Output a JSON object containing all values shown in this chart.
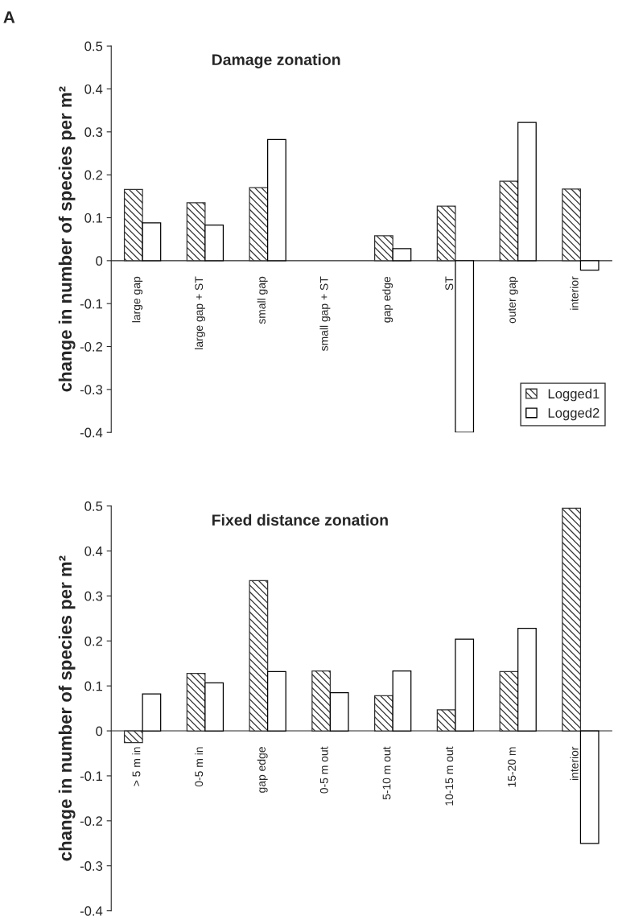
{
  "chart_data": [
    {
      "type": "bar",
      "title": "Damage zonation",
      "ylabel": "change in number of species per m²",
      "annotations": [
        "A"
      ],
      "categories": [
        "large gap",
        "large gap + ST",
        "small gap",
        "small gap + ST",
        "gap edge",
        "ST",
        "outer gap",
        "interior"
      ],
      "series": [
        {
          "name": "Logged1",
          "color": "#333333",
          "values": [
            0.166,
            0.135,
            0.17,
            null,
            0.058,
            0.127,
            0.185,
            0.167
          ]
        },
        {
          "name": "Logged2",
          "color": "#ffffff",
          "values": [
            0.088,
            0.083,
            0.282,
            null,
            0.028,
            -0.4,
            0.322,
            -0.022
          ]
        }
      ],
      "ylim": [
        -0.4,
        0.5
      ],
      "yticks": [
        -0.4,
        -0.3,
        -0.2,
        -0.1,
        0,
        0.1,
        0.2,
        0.3,
        0.4,
        0.5
      ],
      "legend": "bottom right",
      "grid": false
    },
    {
      "type": "bar",
      "title": "Fixed distance zonation",
      "ylabel": "change in number of species per m²",
      "categories": [
        "> 5 m in",
        "0-5 m in",
        "gap edge",
        "0-5 m out",
        "5-10 m out",
        "10-15 m out",
        "15-20 m",
        "interior"
      ],
      "series": [
        {
          "color": "#333333",
          "values": [
            -0.026,
            0.128,
            0.334,
            0.133,
            0.078,
            0.047,
            0.132,
            0.495
          ]
        },
        {
          "color": "#ffffff",
          "values": [
            0.082,
            0.107,
            0.132,
            0.085,
            0.133,
            0.204,
            0.228,
            -0.25
          ]
        }
      ],
      "ylim": [
        -0.4,
        0.5
      ],
      "yticks": [
        -0.4,
        -0.3,
        -0.2,
        -0.1,
        0,
        0.1,
        0.2,
        0.3,
        0.4,
        0.5
      ],
      "grid": false
    }
  ]
}
